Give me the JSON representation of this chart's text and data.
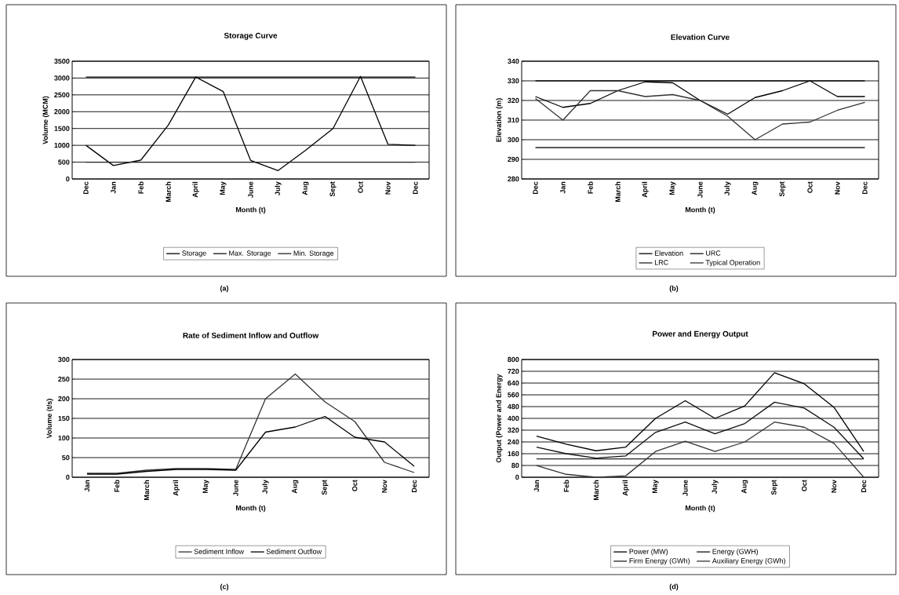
{
  "chart_data": [
    {
      "type": "line",
      "title": "Storage Curve",
      "xlabel": "Month (t)",
      "ylabel": "Volume (MCM)",
      "categories": [
        "Dec",
        "Jan",
        "Feb",
        "March",
        "April",
        "May",
        "June",
        "July",
        "Aug",
        "Sept",
        "Oct",
        "Nov",
        "Dec"
      ],
      "series": [
        {
          "name": "Storage",
          "color": "#000000",
          "values": [
            1000,
            400,
            560,
            1600,
            3030,
            2600,
            550,
            250,
            850,
            1500,
            3050,
            1030,
            1000
          ]
        },
        {
          "name": "Max. Storage",
          "color": "#111111",
          "values": [
            3030,
            3030,
            3030,
            3030,
            3030,
            3030,
            3030,
            3030,
            3030,
            3030,
            3030,
            3030,
            3030
          ]
        },
        {
          "name": "Min. Storage",
          "color": "#222222",
          "values": [
            500,
            500,
            500,
            500,
            500,
            500,
            500,
            500,
            500,
            500,
            500,
            500,
            500
          ]
        }
      ],
      "ylim": [
        0,
        3500
      ],
      "yticks": [
        0,
        500,
        1000,
        1500,
        2000,
        2500,
        3000,
        3500
      ],
      "grid": "y",
      "legend": "bottom",
      "annotations": [
        "(a)"
      ]
    },
    {
      "type": "line",
      "title": "Elevation Curve",
      "xlabel": "Month (t)",
      "ylabel": "Elevation (m)",
      "categories": [
        "Dec",
        "Jan",
        "Feb",
        "March",
        "April",
        "May",
        "June",
        "July",
        "Aug",
        "Sept",
        "Oct",
        "Nov",
        "Dec"
      ],
      "series": [
        {
          "name": "Elevation",
          "color": "#000000",
          "values": [
            322,
            316.5,
            318.5,
            325,
            329.5,
            329,
            320,
            313,
            321.5,
            325,
            330,
            322,
            322
          ]
        },
        {
          "name": "URC",
          "color": "#111111",
          "values": [
            330,
            330,
            330,
            330,
            330,
            330,
            330,
            330,
            330,
            330,
            330,
            330,
            330
          ]
        },
        {
          "name": "LRC",
          "color": "#222222",
          "values": [
            296,
            296,
            296,
            296,
            296,
            296,
            296,
            296,
            296,
            296,
            296,
            296,
            296
          ]
        },
        {
          "name": "Typical Operation",
          "color": "#333333",
          "values": [
            321,
            310,
            325,
            325,
            322,
            323,
            320,
            312,
            300,
            308,
            309,
            315,
            319
          ]
        }
      ],
      "ylim": [
        280,
        340
      ],
      "yticks": [
        280,
        290,
        300,
        310,
        320,
        330,
        340
      ],
      "grid": "y",
      "legend": "bottom",
      "annotations": [
        "(b)"
      ]
    },
    {
      "type": "line",
      "title": "Rate of Sediment Inflow and Outflow",
      "xlabel": "Month (t)",
      "ylabel": "Volume (t/s)",
      "categories": [
        "Jan",
        "Feb",
        "March",
        "April",
        "May",
        "June",
        "July",
        "Aug",
        "Sept",
        "Oct",
        "Nov",
        "Dec"
      ],
      "series": [
        {
          "name": "Sediment Inflow",
          "color": "#333333",
          "values": [
            10,
            10,
            18,
            22,
            22,
            20,
            200,
            263,
            192,
            142,
            38,
            12
          ]
        },
        {
          "name": "Sediment Outflow",
          "color": "#000000",
          "values": [
            8,
            8,
            15,
            20,
            20,
            18,
            115,
            128,
            155,
            102,
            90,
            28
          ]
        }
      ],
      "ylim": [
        0,
        300
      ],
      "yticks": [
        0,
        50,
        100,
        150,
        200,
        250,
        300
      ],
      "grid": "y",
      "legend": "bottom",
      "annotations": [
        "(c)"
      ]
    },
    {
      "type": "line",
      "title": "Power and Energy Output",
      "xlabel": "Month (t)",
      "ylabel": "Output (Power and Energy",
      "categories": [
        "Jan",
        "Feb",
        "March",
        "April",
        "May",
        "June",
        "July",
        "Aug",
        "Sept",
        "Oct",
        "Nov",
        "Dec"
      ],
      "series": [
        {
          "name": "Power (MW)",
          "color": "#000000",
          "values": [
            280,
            225,
            180,
            205,
            400,
            520,
            400,
            485,
            710,
            635,
            475,
            175
          ]
        },
        {
          "name": "Energy (GWH)",
          "color": "#111111",
          "values": [
            205,
            160,
            130,
            145,
            305,
            375,
            295,
            365,
            510,
            470,
            340,
            125
          ]
        },
        {
          "name": "Firm Energy (GWh)",
          "color": "#222222",
          "values": [
            125,
            125,
            125,
            125,
            125,
            125,
            125,
            125,
            125,
            125,
            125,
            125
          ]
        },
        {
          "name": "Auxiliary Energy (GWh)",
          "color": "#333333",
          "values": [
            80,
            20,
            0,
            10,
            175,
            245,
            175,
            240,
            375,
            340,
            230,
            0
          ]
        }
      ],
      "ylim": [
        0,
        800
      ],
      "yticks": [
        0,
        80,
        160,
        240,
        320,
        400,
        480,
        560,
        640,
        720,
        800
      ],
      "grid": "y",
      "legend": "bottom",
      "annotations": [
        "(d)"
      ]
    }
  ]
}
